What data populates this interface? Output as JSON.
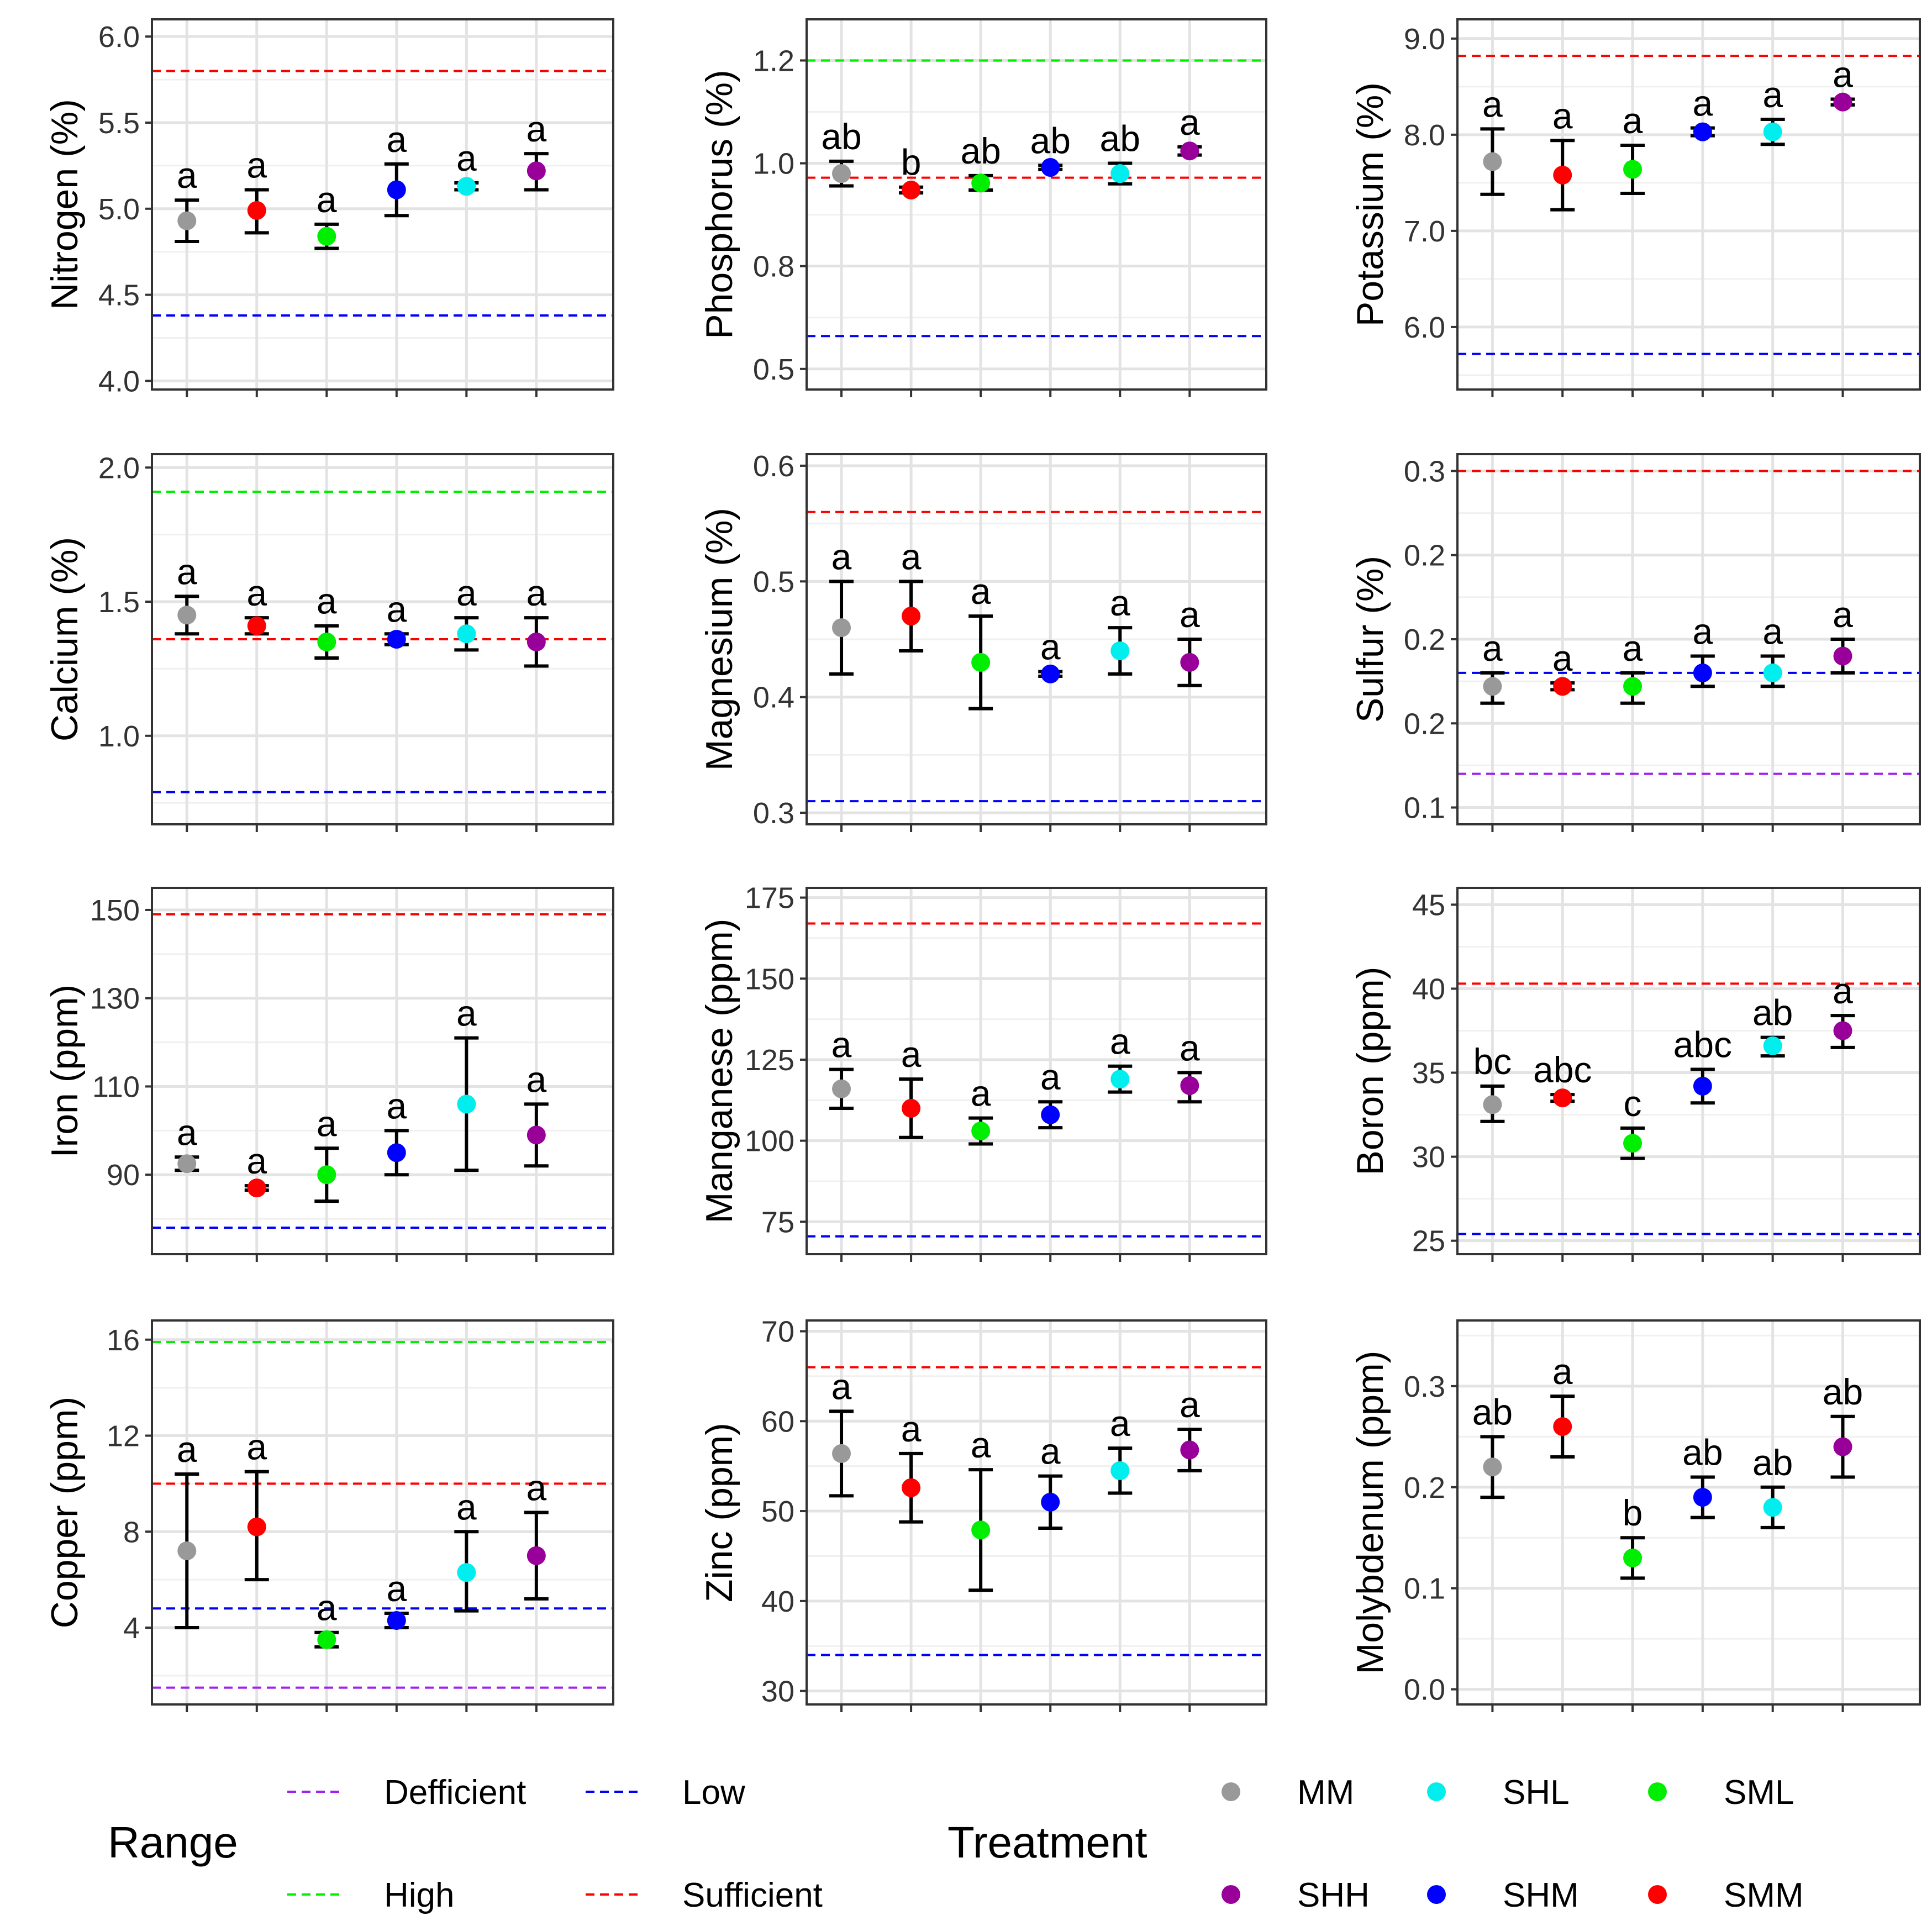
{
  "chart_data": {
    "type": "scatter",
    "description_free": true,
    "treatments": [
      "MM",
      "SMM",
      "SML",
      "SHM",
      "SHL",
      "SHH"
    ],
    "treatment_colors": {
      "MM": "#999999",
      "SMM": "#ff0000",
      "SML": "#00ee00",
      "SHM": "#0000ff",
      "SHL": "#00eeee",
      "SHH": "#990099"
    },
    "range_colors": {
      "Defficient": "#a020f0",
      "Low": "#0000ff",
      "High": "#00ee00",
      "Sufficient": "#ff0000"
    },
    "panels": [
      {
        "ylabel": "Nitrogen (%)",
        "ylim": [
          3.95,
          6.1
        ],
        "ticks": [
          4.0,
          4.5,
          5.0,
          5.5,
          6.0
        ],
        "tick_labels": [
          "4.0",
          "4.5",
          "5.0",
          "5.5",
          "6.0"
        ],
        "means": [
          4.93,
          4.99,
          4.84,
          5.11,
          5.13,
          5.22
        ],
        "lower": [
          4.81,
          4.86,
          4.77,
          4.96,
          5.11,
          5.11
        ],
        "upper": [
          5.05,
          5.11,
          4.91,
          5.26,
          5.15,
          5.32
        ],
        "letters": [
          "a",
          "a",
          "a",
          "a",
          "a",
          "a"
        ],
        "ranges": [
          {
            "name": "Sufficient",
            "value": 5.8
          },
          {
            "name": "Low",
            "value": 4.38
          }
        ]
      },
      {
        "ylabel": "Phosphorus (%)",
        "ylim": [
          0.45,
          1.35
        ],
        "ticks": [
          0.5,
          0.75,
          1.0,
          1.25
        ],
        "tick_labels": [
          "0.5",
          "0.8",
          "1.0",
          "1.2"
        ],
        "means": [
          0.975,
          0.935,
          0.952,
          0.99,
          0.975,
          1.03
        ],
        "lower": [
          0.945,
          0.928,
          0.935,
          0.985,
          0.95,
          1.02
        ],
        "upper": [
          1.005,
          0.942,
          0.97,
          0.995,
          1.0,
          1.04
        ],
        "letters": [
          "ab",
          "b",
          "ab",
          "ab",
          "ab",
          "a"
        ],
        "ranges": [
          {
            "name": "High",
            "value": 1.25
          },
          {
            "name": "Sufficient",
            "value": 0.965
          },
          {
            "name": "Low",
            "value": 0.58
          }
        ]
      },
      {
        "ylabel": "Potassium (%)",
        "ylim": [
          5.35,
          9.2
        ],
        "ticks": [
          6.0,
          7.0,
          8.0,
          9.0
        ],
        "tick_labels": [
          "6.0",
          "7.0",
          "8.0",
          "9.0"
        ],
        "means": [
          7.72,
          7.58,
          7.64,
          8.03,
          8.03,
          8.34
        ],
        "lower": [
          7.38,
          7.22,
          7.39,
          7.99,
          7.9,
          8.31
        ],
        "upper": [
          8.06,
          7.94,
          7.89,
          8.07,
          8.16,
          8.37
        ],
        "letters": [
          "a",
          "a",
          "a",
          "a",
          "a",
          "a"
        ],
        "ranges": [
          {
            "name": "Sufficient",
            "value": 8.82
          },
          {
            "name": "Low",
            "value": 5.72
          }
        ]
      },
      {
        "ylabel": "Calcium (%)",
        "ylim": [
          0.67,
          2.05
        ],
        "ticks": [
          1.0,
          1.5,
          2.0
        ],
        "tick_labels": [
          "1.0",
          "1.5",
          "2.0"
        ],
        "means": [
          1.45,
          1.41,
          1.35,
          1.36,
          1.38,
          1.35
        ],
        "lower": [
          1.38,
          1.38,
          1.29,
          1.34,
          1.32,
          1.26
        ],
        "upper": [
          1.52,
          1.44,
          1.41,
          1.38,
          1.44,
          1.44
        ],
        "letters": [
          "a",
          "a",
          "a",
          "a",
          "a",
          "a"
        ],
        "ranges": [
          {
            "name": "High",
            "value": 1.91
          },
          {
            "name": "Sufficient",
            "value": 1.36
          },
          {
            "name": "Low",
            "value": 0.79
          }
        ]
      },
      {
        "ylabel": "Magnesium (%)",
        "ylim": [
          0.29,
          0.61
        ],
        "ticks": [
          0.3,
          0.4,
          0.5,
          0.6
        ],
        "tick_labels": [
          "0.3",
          "0.4",
          "0.5",
          "0.6"
        ],
        "means": [
          0.46,
          0.47,
          0.43,
          0.42,
          0.44,
          0.43
        ],
        "lower": [
          0.42,
          0.44,
          0.39,
          0.418,
          0.42,
          0.41
        ],
        "upper": [
          0.5,
          0.5,
          0.47,
          0.422,
          0.46,
          0.45
        ],
        "letters": [
          "a",
          "a",
          "a",
          "a",
          "a",
          "a"
        ],
        "ranges": [
          {
            "name": "Sufficient",
            "value": 0.56
          },
          {
            "name": "Low",
            "value": 0.31
          }
        ]
      },
      {
        "ylabel": "Sulfur (%)",
        "ylim": [
          0.09,
          0.31
        ],
        "ticks": [
          0.1,
          0.15,
          0.2,
          0.25,
          0.3
        ],
        "tick_labels": [
          "0.1",
          "0.2",
          "0.2",
          "0.2",
          "0.3"
        ],
        "means": [
          0.172,
          0.172,
          0.172,
          0.18,
          0.18,
          0.19
        ],
        "lower": [
          0.162,
          0.17,
          0.162,
          0.172,
          0.172,
          0.18
        ],
        "upper": [
          0.18,
          0.174,
          0.18,
          0.19,
          0.19,
          0.2
        ],
        "letters": [
          "a",
          "a",
          "a",
          "a",
          "a",
          "a"
        ],
        "ranges": [
          {
            "name": "Sufficient",
            "value": 0.3
          },
          {
            "name": "Low",
            "value": 0.18
          },
          {
            "name": "Defficient",
            "value": 0.12
          }
        ]
      },
      {
        "ylabel": "Iron (ppm)",
        "ylim": [
          72,
          155
        ],
        "ticks": [
          90,
          110,
          130,
          150
        ],
        "tick_labels": [
          "90",
          "110",
          "130",
          "150"
        ],
        "means": [
          92.5,
          87,
          90,
          95,
          106,
          99
        ],
        "lower": [
          91,
          86.5,
          84,
          90,
          91,
          92
        ],
        "upper": [
          94,
          87.5,
          96,
          100,
          121,
          106
        ],
        "letters": [
          "a",
          "a",
          "a",
          "a",
          "a",
          "a"
        ],
        "ranges": [
          {
            "name": "Sufficient",
            "value": 149
          },
          {
            "name": "Low",
            "value": 78
          }
        ]
      },
      {
        "ylabel": "Manganese (ppm)",
        "ylim": [
          65,
          178
        ],
        "ticks": [
          75,
          100,
          125,
          150,
          175
        ],
        "tick_labels": [
          "75",
          "100",
          "125",
          "150",
          "175"
        ],
        "means": [
          116,
          110,
          103,
          108,
          119,
          117
        ],
        "lower": [
          110,
          101,
          99,
          104,
          115,
          112
        ],
        "upper": [
          122,
          119,
          107,
          112,
          123,
          121
        ],
        "letters": [
          "a",
          "a",
          "a",
          "a",
          "a",
          "a"
        ],
        "ranges": [
          {
            "name": "Sufficient",
            "value": 167
          },
          {
            "name": "Low",
            "value": 70.5
          }
        ]
      },
      {
        "ylabel": "Boron (ppm)",
        "ylim": [
          24.2,
          46
        ],
        "ticks": [
          25,
          30,
          35,
          40,
          45
        ],
        "tick_labels": [
          "25",
          "30",
          "35",
          "40",
          "45"
        ],
        "means": [
          33.1,
          33.5,
          30.8,
          34.2,
          36.6,
          37.5
        ],
        "lower": [
          32.1,
          33.3,
          29.9,
          33.2,
          36.0,
          36.5
        ],
        "upper": [
          34.2,
          33.7,
          31.7,
          35.2,
          37.1,
          38.4
        ],
        "letters": [
          "bc",
          "abc",
          "c",
          "abc",
          "ab",
          "a"
        ],
        "ranges": [
          {
            "name": "Sufficient",
            "value": 40.3
          },
          {
            "name": "Low",
            "value": 25.4
          }
        ]
      },
      {
        "ylabel": "Copper (ppm)",
        "ylim": [
          0.8,
          16.8
        ],
        "ticks": [
          4,
          8,
          12,
          16
        ],
        "tick_labels": [
          "4",
          "8",
          "12",
          "16"
        ],
        "means": [
          7.2,
          8.2,
          3.5,
          4.3,
          6.3,
          7.0
        ],
        "lower": [
          4.0,
          6.0,
          3.2,
          4.0,
          4.7,
          5.2
        ],
        "upper": [
          10.4,
          10.5,
          3.8,
          4.6,
          8.0,
          8.8
        ],
        "letters": [
          "a",
          "a",
          "a",
          "a",
          "a",
          "a"
        ],
        "ranges": [
          {
            "name": "High",
            "value": 15.9
          },
          {
            "name": "Sufficient",
            "value": 10.0
          },
          {
            "name": "Low",
            "value": 4.8
          },
          {
            "name": "Defficient",
            "value": 1.5
          }
        ]
      },
      {
        "ylabel": "Zinc (ppm)",
        "ylim": [
          28.5,
          71.2
        ],
        "ticks": [
          30,
          40,
          50,
          60,
          70
        ],
        "tick_labels": [
          "30",
          "40",
          "50",
          "60",
          "70"
        ],
        "means": [
          56.4,
          52.6,
          47.9,
          51.0,
          54.5,
          56.8
        ],
        "lower": [
          51.7,
          48.8,
          41.2,
          48.1,
          52.0,
          54.5
        ],
        "upper": [
          61.1,
          56.4,
          54.6,
          53.9,
          57.0,
          59.1
        ],
        "letters": [
          "a",
          "a",
          "a",
          "a",
          "a",
          "a"
        ],
        "ranges": [
          {
            "name": "Sufficient",
            "value": 66
          },
          {
            "name": "Low",
            "value": 34
          }
        ]
      },
      {
        "ylabel": "Molybdenum (ppm)",
        "ylim": [
          -0.015,
          0.365
        ],
        "ticks": [
          0.0,
          0.1,
          0.2,
          0.3
        ],
        "tick_labels": [
          "0.0",
          "0.1",
          "0.2",
          "0.3"
        ],
        "means": [
          0.22,
          0.26,
          0.13,
          0.19,
          0.18,
          0.24
        ],
        "lower": [
          0.19,
          0.23,
          0.11,
          0.17,
          0.16,
          0.21
        ],
        "upper": [
          0.25,
          0.29,
          0.15,
          0.21,
          0.2,
          0.27
        ],
        "letters": [
          "ab",
          "a",
          "b",
          "ab",
          "ab",
          "ab"
        ],
        "ranges": []
      }
    ],
    "legend": {
      "range_title": "Range",
      "range_items": [
        "Defficient",
        "Low",
        "High",
        "Sufficient"
      ],
      "treatment_title": "Treatment",
      "treatment_items": [
        "MM",
        "SHL",
        "SML",
        "SHH",
        "SHM",
        "SMM"
      ],
      "placement": "bottom"
    }
  }
}
